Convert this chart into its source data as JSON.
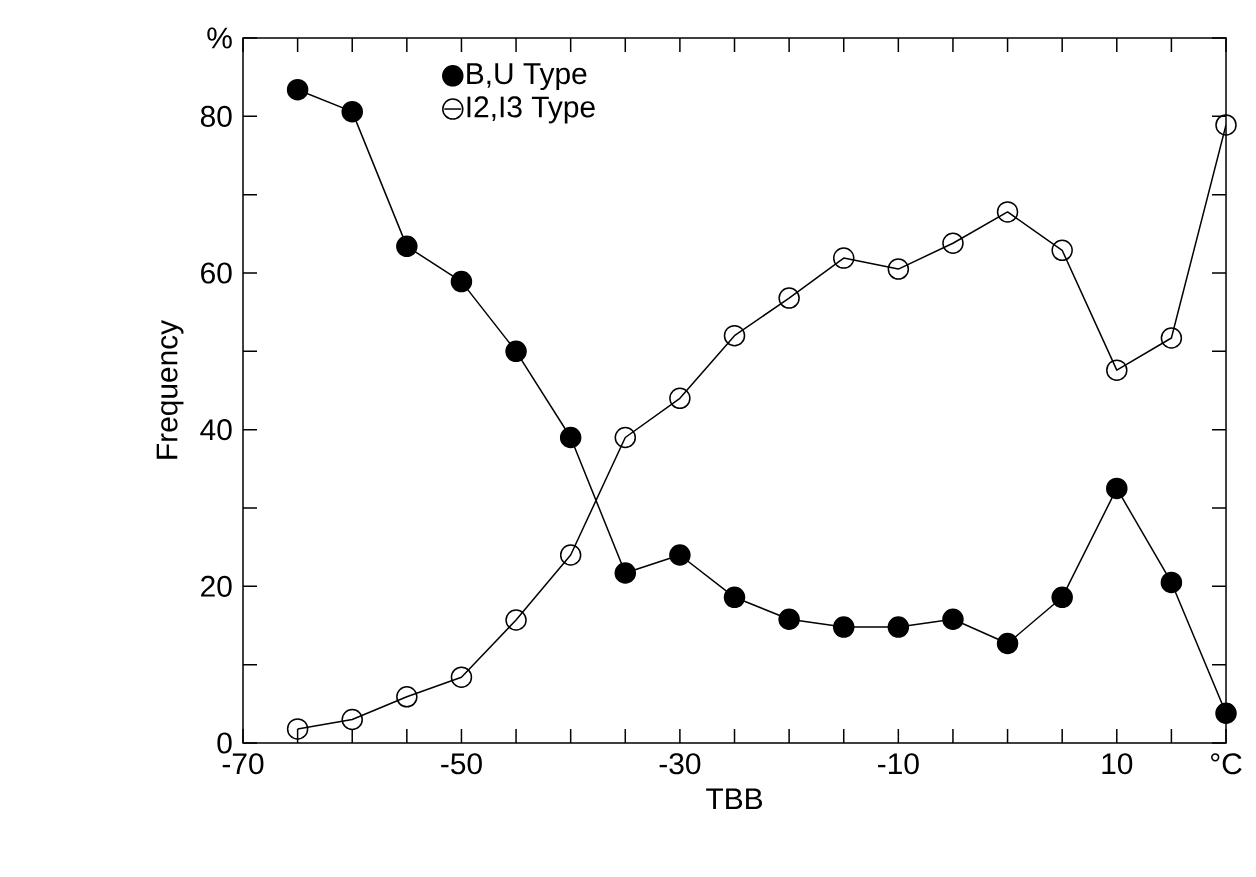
{
  "chart_data": {
    "type": "line",
    "xlabel": "TBB",
    "ylabel": "Frequency",
    "x": [
      -65,
      -60,
      -55,
      -50,
      -45,
      -40,
      -35,
      -30,
      -25,
      -20,
      -15,
      -10,
      -5,
      0,
      5,
      10,
      15,
      20
    ],
    "series": [
      {
        "name": "B,U Type",
        "color": "#000000",
        "values": [
          83.4,
          80.6,
          63.4,
          58.9,
          50,
          39,
          21.7,
          24,
          18.6,
          15.8,
          14.8,
          14.8,
          15.8,
          12.7,
          18.6,
          32.5,
          20.5,
          3.8
        ]
      },
      {
        "name": "I2,I3 Type",
        "color": "#000000",
        "values": [
          1.8,
          3,
          5.9,
          8.4,
          15.7,
          24,
          39,
          44,
          52,
          56.8,
          61.9,
          60.5,
          63.8,
          67.8,
          62.9,
          47.6,
          51.7,
          78.9
        ]
      }
    ],
    "marker": "circle",
    "line_style": "solid",
    "legend": "top left",
    "grid": false,
    "xlim": [
      -70,
      20
    ],
    "xticks": [
      -70,
      {
        "value": -65,
        "label": null
      },
      {
        "value": -60,
        "label": null
      },
      {
        "value": -55,
        "label": null
      },
      -50,
      {
        "value": -45,
        "label": null
      },
      {
        "value": -40,
        "label": null
      },
      {
        "value": -35,
        "label": null
      },
      -30,
      {
        "value": -25,
        "label": null
      },
      {
        "value": -20,
        "label": null
      },
      {
        "value": -15,
        "label": null
      },
      -10,
      {
        "value": -5,
        "label": null
      },
      {
        "value": 0,
        "label": null
      },
      {
        "value": 5,
        "label": null
      },
      10,
      {
        "value": 15,
        "label": null
      },
      {
        "value": 20,
        "label": "°C"
      }
    ],
    "ylim": [
      0,
      90
    ],
    "yticks": [
      0,
      {
        "value": 10,
        "label": null
      },
      20,
      {
        "value": 30,
        "label": null
      },
      40,
      {
        "value": 50,
        "label": null
      },
      60,
      {
        "value": 70,
        "label": null
      },
      80,
      {
        "value": 90,
        "label": "%"
      }
    ]
  }
}
